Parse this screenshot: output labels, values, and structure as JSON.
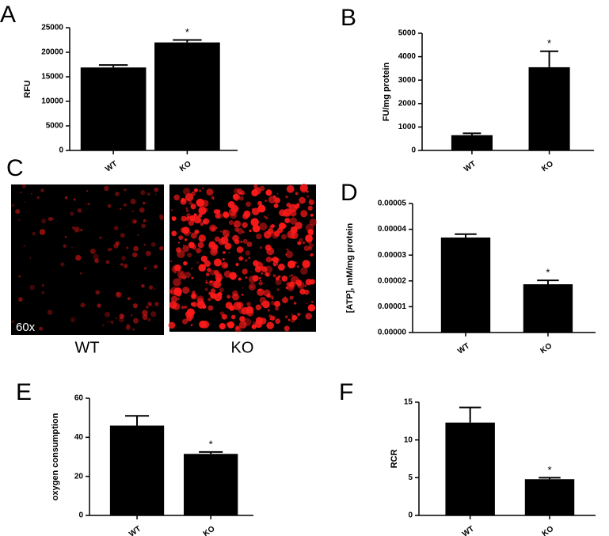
{
  "chart_data": [
    {
      "type": "bar",
      "label": "A",
      "ylabel": "RFU",
      "categories": [
        "WT",
        "KO"
      ],
      "values": [
        16900,
        22000
      ],
      "errors": [
        500,
        500
      ],
      "color": "#000000",
      "ylim": [
        0,
        25000
      ],
      "yticks": [
        0,
        5000,
        10000,
        15000,
        20000,
        25000
      ],
      "annotations": [
        {
          "category": "KO",
          "text": "*"
        }
      ]
    },
    {
      "type": "bar",
      "label": "B",
      "ylabel": "FU/mg protein",
      "categories": [
        "WT",
        "KO"
      ],
      "values": [
        650,
        3550
      ],
      "errors": [
        80,
        680
      ],
      "color": "#000000",
      "ylim": [
        0,
        5000
      ],
      "yticks": [
        0,
        1000,
        2000,
        3000,
        4000,
        5000
      ],
      "annotations": [
        {
          "category": "KO",
          "text": "*"
        }
      ]
    },
    {
      "type": "bar",
      "label": "D",
      "ylabel": "[ATP], mM/mg protein",
      "categories": [
        "WT",
        "KO"
      ],
      "values": [
        3.68e-05,
        1.87e-05
      ],
      "errors": [
        1.3e-06,
        1.5e-06
      ],
      "color": "#000000",
      "ylim": [
        0,
        5e-05
      ],
      "yticks": [
        {
          "value": 0,
          "label": "0.00000"
        },
        {
          "value": 1e-05,
          "label": "0.00001"
        },
        {
          "value": 2e-05,
          "label": "0.00002"
        },
        {
          "value": 3e-05,
          "label": "0.00003"
        },
        {
          "value": 4e-05,
          "label": "0.00004"
        },
        {
          "value": 5e-05,
          "label": "0.00005"
        }
      ],
      "annotations": [
        {
          "category": "KO",
          "text": "*"
        }
      ]
    },
    {
      "type": "bar",
      "label": "E",
      "ylabel": "oxygen consumption",
      "categories": [
        "WT",
        "KO"
      ],
      "values": [
        46,
        31.5
      ],
      "errors": [
        5,
        1
      ],
      "color": "#000000",
      "ylim": [
        0,
        60
      ],
      "yticks": [
        0,
        20,
        40,
        60
      ],
      "annotations": [
        {
          "category": "KO",
          "text": "*"
        }
      ]
    },
    {
      "type": "bar",
      "label": "F",
      "ylabel": "RCR",
      "categories": [
        "WT",
        "KO"
      ],
      "values": [
        12.3,
        4.8
      ],
      "errors": [
        2,
        0.2
      ],
      "color": "#000000",
      "ylim": [
        0,
        15
      ],
      "yticks": [
        0,
        5,
        10,
        15
      ],
      "annotations": [
        {
          "category": "KO",
          "text": "*"
        }
      ]
    }
  ],
  "image_panel": {
    "label": "C",
    "magnification": "60x",
    "captions": [
      "WT",
      "KO"
    ]
  }
}
